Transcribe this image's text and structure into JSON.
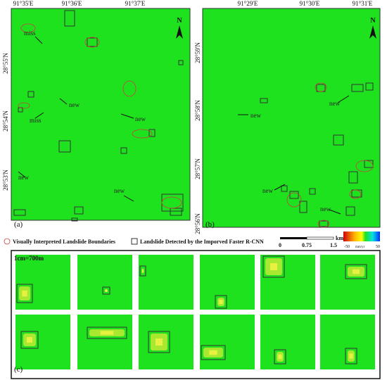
{
  "panel_a": {
    "label": "(a)",
    "north": "N",
    "lon_labels": [
      "91°35'E",
      "91°36'E",
      "91°37'E"
    ],
    "lat_labels": [
      "28°55'N",
      "28°54'N",
      "28°53'N"
    ],
    "annotations": [
      "miss",
      "new",
      "miss",
      "new",
      "new",
      "new"
    ]
  },
  "panel_b": {
    "label": "(b)",
    "north": "N",
    "lon_labels": [
      "91°29'E",
      "91°30'E",
      "91°31'E"
    ],
    "lat_labels": [
      "28°59'N",
      "28°58'N",
      "28°57'N",
      "28°56'N"
    ],
    "annotations": [
      "new",
      "new",
      "new",
      "new"
    ]
  },
  "legend": {
    "visual": "Visually Interpreted Landslide Boundaries",
    "detected": "Landslide Detected by the Imporved Faster R-CNN"
  },
  "scale_bar": {
    "unit": "km",
    "labels": [
      "0",
      "0.75",
      "1.5"
    ]
  },
  "colorbar": {
    "min": "-50",
    "unit": "mm/yr",
    "max": "50"
  },
  "panel_c": {
    "label": "(c)",
    "scale_note": "1cm=700m"
  }
}
